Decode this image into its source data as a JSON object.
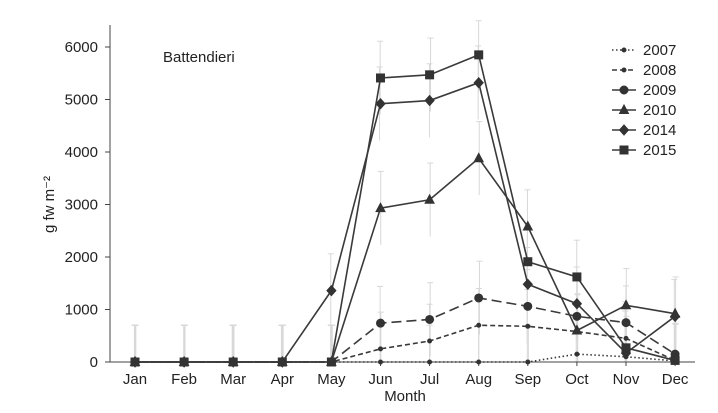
{
  "chart_data": {
    "type": "line",
    "title": "",
    "annotation": "Battendieri",
    "xlabel": "Month",
    "ylabel": "g fw m⁻²",
    "ylim": [
      0,
      6000
    ],
    "yticks": [
      0,
      1000,
      2000,
      3000,
      4000,
      5000,
      6000
    ],
    "categories": [
      "Jan",
      "Feb",
      "Mar",
      "Apr",
      "May",
      "Jun",
      "Jul",
      "Aug",
      "Sep",
      "Oct",
      "Nov",
      "Dec"
    ],
    "grid": false,
    "legend_position": "top-right",
    "series": [
      {
        "name": "2007",
        "line_style": "dotted",
        "marker": "small-dot",
        "values": [
          0,
          0,
          0,
          0,
          0,
          0,
          0,
          0,
          0,
          150,
          100,
          20
        ]
      },
      {
        "name": "2008",
        "line_style": "dashed",
        "marker": "small-dot",
        "values": [
          0,
          0,
          0,
          0,
          0,
          250,
          400,
          700,
          680,
          580,
          450,
          30
        ]
      },
      {
        "name": "2009",
        "line_style": "long-dashed",
        "marker": "circle",
        "values": [
          0,
          0,
          0,
          0,
          0,
          740,
          810,
          1220,
          1060,
          870,
          750,
          150
        ]
      },
      {
        "name": "2010",
        "line_style": "solid",
        "marker": "triangle",
        "values": [
          0,
          0,
          0,
          0,
          0,
          2930,
          3090,
          3880,
          2580,
          600,
          1080,
          920
        ]
      },
      {
        "name": "2014",
        "line_style": "solid",
        "marker": "diamond",
        "values": [
          0,
          0,
          0,
          0,
          1360,
          4920,
          4980,
          5320,
          1480,
          1110,
          170,
          870
        ]
      },
      {
        "name": "2015",
        "line_style": "solid",
        "marker": "square",
        "values": [
          0,
          0,
          0,
          0,
          0,
          5410,
          5470,
          5850,
          1910,
          1620,
          270,
          30
        ]
      }
    ]
  }
}
